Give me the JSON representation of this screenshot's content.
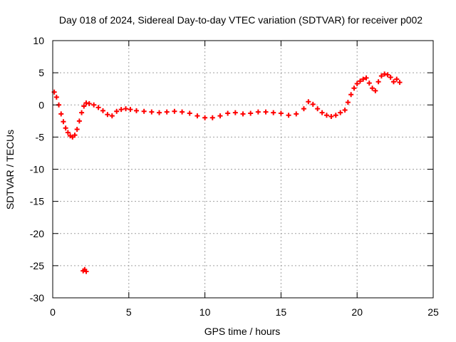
{
  "chart_data": {
    "type": "scatter",
    "title": "Day 018 of 2024, Sidereal Day-to-day VTEC variation (SDTVAR) for receiver p002",
    "xlabel": "GPS time / hours",
    "ylabel": "SDTVAR / TECUs",
    "xlim": [
      0,
      25
    ],
    "ylim": [
      -30,
      10
    ],
    "xticks": [
      0,
      5,
      10,
      15,
      20,
      25
    ],
    "yticks": [
      -30,
      -25,
      -20,
      -15,
      -10,
      -5,
      0,
      5,
      10
    ],
    "grid": true,
    "marker": "+",
    "color": "#ff0000",
    "series": [
      {
        "name": "SDTVAR",
        "x": [
          0.1,
          0.25,
          0.4,
          0.55,
          0.7,
          0.85,
          1.0,
          1.15,
          1.3,
          1.45,
          1.6,
          1.75,
          1.9,
          2.05,
          2.2,
          2.4,
          2.7,
          3.0,
          3.3,
          3.6,
          3.9,
          4.2,
          4.5,
          4.8,
          5.1,
          5.5,
          6.0,
          6.5,
          7.0,
          7.5,
          8.0,
          8.5,
          9.0,
          9.5,
          10.0,
          10.5,
          11.0,
          11.5,
          12.0,
          12.5,
          13.0,
          13.5,
          14.0,
          14.5,
          15.0,
          15.5,
          16.0,
          16.5,
          16.8,
          17.1,
          17.4,
          17.7,
          18.0,
          18.3,
          18.6,
          18.9,
          19.2,
          19.4,
          19.6,
          19.8,
          20.0,
          20.2,
          20.4,
          20.6,
          20.8,
          21.0,
          21.2,
          21.4,
          21.6,
          21.8,
          22.0,
          22.2,
          22.4,
          22.6,
          22.8,
          2.0,
          2.1,
          2.2
        ],
        "y": [
          2.0,
          1.2,
          0.0,
          -1.4,
          -2.6,
          -3.6,
          -4.3,
          -4.8,
          -5.0,
          -4.7,
          -3.8,
          -2.5,
          -1.2,
          -0.2,
          0.3,
          0.2,
          0.0,
          -0.4,
          -0.9,
          -1.5,
          -1.7,
          -1.0,
          -0.7,
          -0.6,
          -0.7,
          -0.9,
          -1.0,
          -1.1,
          -1.2,
          -1.1,
          -1.0,
          -1.1,
          -1.3,
          -1.7,
          -2.0,
          -2.0,
          -1.7,
          -1.3,
          -1.2,
          -1.4,
          -1.3,
          -1.1,
          -1.1,
          -1.2,
          -1.3,
          -1.6,
          -1.4,
          -0.6,
          0.5,
          0.1,
          -0.6,
          -1.2,
          -1.6,
          -1.8,
          -1.6,
          -1.2,
          -0.8,
          0.4,
          1.6,
          2.6,
          3.3,
          3.7,
          4.0,
          4.2,
          3.4,
          2.6,
          2.2,
          3.6,
          4.5,
          4.8,
          4.7,
          4.3,
          3.6,
          4.0,
          3.5,
          -25.8,
          -25.6,
          -25.9
        ]
      }
    ]
  }
}
